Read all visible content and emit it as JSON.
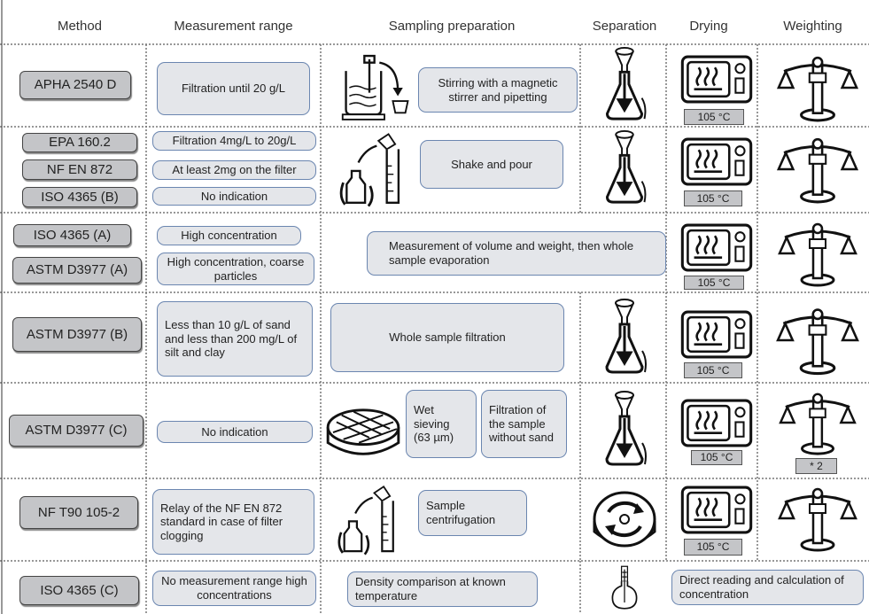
{
  "header": [
    "Method",
    "Measurement range",
    "Sampling preparation",
    "Separation",
    "Drying",
    "Weighting"
  ],
  "rows": [
    {
      "methods": [
        "APHA 2540 D"
      ],
      "ranges": [
        "Filtration until 20 g/L"
      ],
      "preparation": [
        "Stirring with a magnetic stirrer and pipetting"
      ],
      "drying": "105 °C"
    },
    {
      "methods": [
        "EPA 160.2",
        "NF EN 872",
        "ISO 4365 (B)"
      ],
      "ranges": [
        "Filtration 4mg/L to 20g/L",
        "At least 2mg on the filter",
        "No indication"
      ],
      "preparation": [
        "Shake and pour"
      ],
      "drying": "105 °C"
    },
    {
      "methods": [
        "ISO 4365 (A)",
        "ASTM D3977 (A)"
      ],
      "ranges": [
        "High concentration",
        "High concentration, coarse particles"
      ],
      "preparation": [
        "Measurement of volume and weight, then whole sample evaporation"
      ],
      "drying": "105 °C"
    },
    {
      "methods": [
        "ASTM D3977 (B)"
      ],
      "ranges": [
        "Less than 10 g/L of sand and less than 200 mg/L of silt and clay"
      ],
      "preparation": [
        "Whole sample filtration"
      ],
      "drying": "105 °C"
    },
    {
      "methods": [
        "ASTM D3977 (C)"
      ],
      "ranges": [
        "No indication"
      ],
      "preparation": [
        "Wet sieving (63 µm)",
        "Filtration of the sample without sand"
      ],
      "drying": "105 °C",
      "weighting": "* 2"
    },
    {
      "methods": [
        "NF T90 105-2"
      ],
      "ranges": [
        "Relay of the NF EN 872 standard in case of filter clogging"
      ],
      "preparation": [
        "Sample centrifugation"
      ],
      "drying": "105 °C"
    },
    {
      "methods": [
        "ISO 4365 (C)"
      ],
      "ranges": [
        "No measurement range high concentrations"
      ],
      "preparation": [
        "Density comparison at known temperature"
      ],
      "drying_weighting": "Direct reading and calculation of concentration"
    }
  ]
}
